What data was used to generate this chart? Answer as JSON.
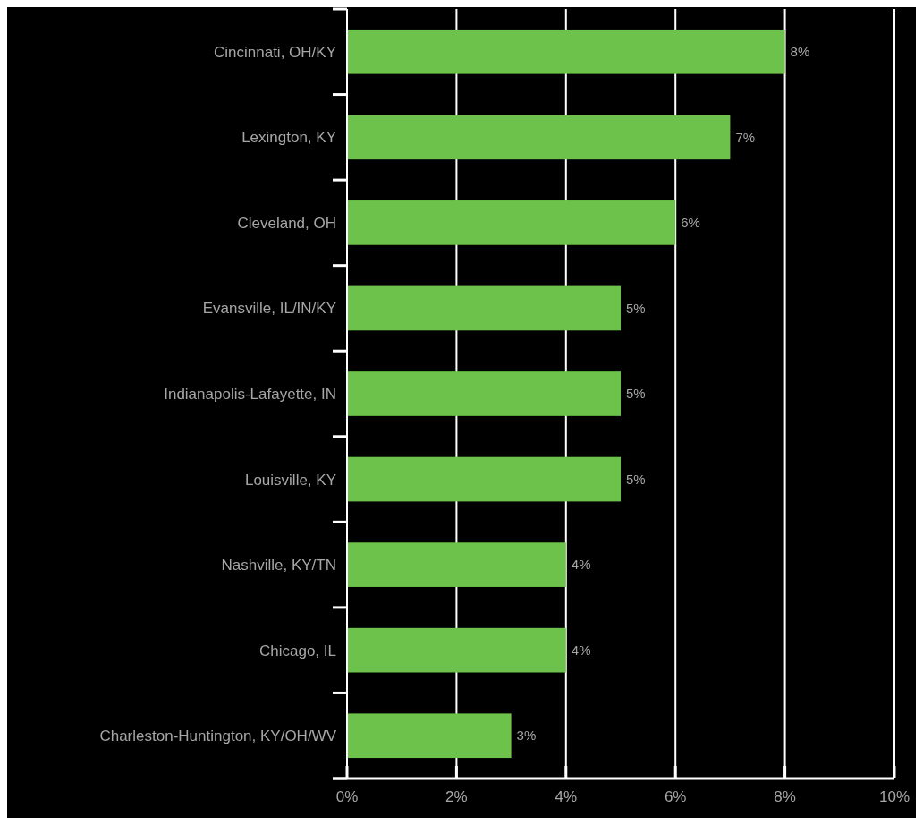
{
  "chart_data": {
    "type": "bar",
    "orientation": "horizontal",
    "categories": [
      "Cincinnati, OH/KY",
      "Lexington, KY",
      "Cleveland, OH",
      "Evansville, IL/IN/KY",
      "Indianapolis-Lafayette, IN",
      "Louisville, KY",
      "Nashville, KY/TN",
      "Chicago, IL",
      "Charleston-Huntington, KY/OH/WV"
    ],
    "values": [
      8,
      7,
      6,
      5,
      5,
      5,
      4,
      4,
      3
    ],
    "value_labels": [
      "8%",
      "7%",
      "6%",
      "5%",
      "5%",
      "5%",
      "4%",
      "4%",
      "3%"
    ],
    "color": "#6cc24a",
    "xlim": [
      0,
      10
    ],
    "xticks": [
      {
        "value": 0,
        "label": "0%"
      },
      {
        "value": 2,
        "label": "2%"
      },
      {
        "value": 4,
        "label": "4%"
      },
      {
        "value": 6,
        "label": "6%"
      },
      {
        "value": 8,
        "label": "8%"
      },
      {
        "value": 10,
        "label": "10%"
      }
    ],
    "grid": "x"
  }
}
